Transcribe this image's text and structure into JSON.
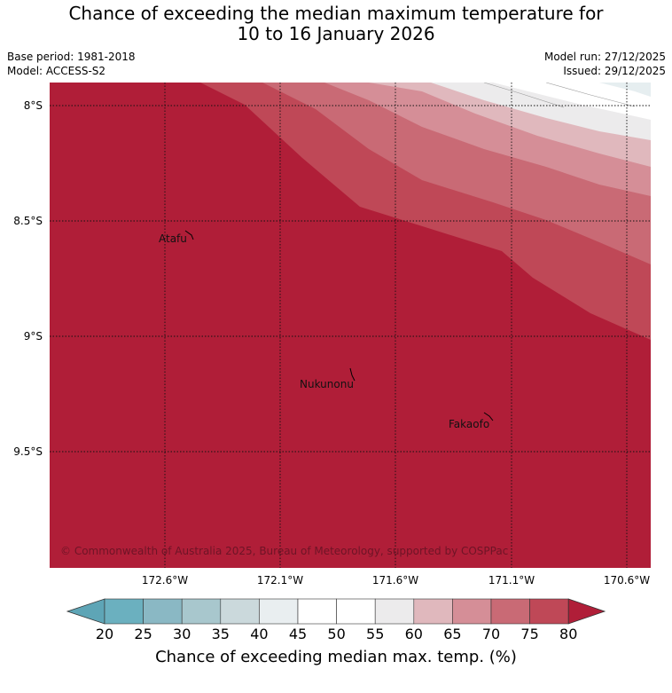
{
  "title_line1": "Chance of exceeding the median maximum temperature for",
  "title_line2": "10 to 16 January 2026",
  "meta": {
    "base_period": "Base period: 1981-2018",
    "model": "Model: ACCESS-S2",
    "model_run": "Model run: 27/12/2025",
    "issued": "Issued: 29/12/2025"
  },
  "map": {
    "lat_labels": [
      "8°S",
      "8.5°S",
      "9°S",
      "9.5°S"
    ],
    "lon_labels": [
      "172.6°W",
      "172.1°W",
      "171.6°W",
      "171.1°W",
      "170.6°W"
    ],
    "places": [
      "Atafu",
      "Nukunonu",
      "Fakaofo"
    ],
    "copyright": "© Commonwealth of Australia 2025, Bureau of Meteorology, supported by COSPPac",
    "background_color": "#b01e38"
  },
  "colorbar": {
    "ticks": [
      "20",
      "25",
      "30",
      "35",
      "40",
      "45",
      "50",
      "55",
      "60",
      "65",
      "70",
      "75",
      "80"
    ],
    "label": "Chance of exceeding median max. temp. (%)",
    "colors": [
      "#5ea5b6",
      "#6bb0bf",
      "#8ab8c4",
      "#a8c7cd",
      "#cbd9dc",
      "#e9eef0",
      "#ffffff",
      "#ffffff",
      "#ecebec",
      "#e0b8bd",
      "#d58e97",
      "#c96a75",
      "#bf4857",
      "#b01e38"
    ]
  }
}
